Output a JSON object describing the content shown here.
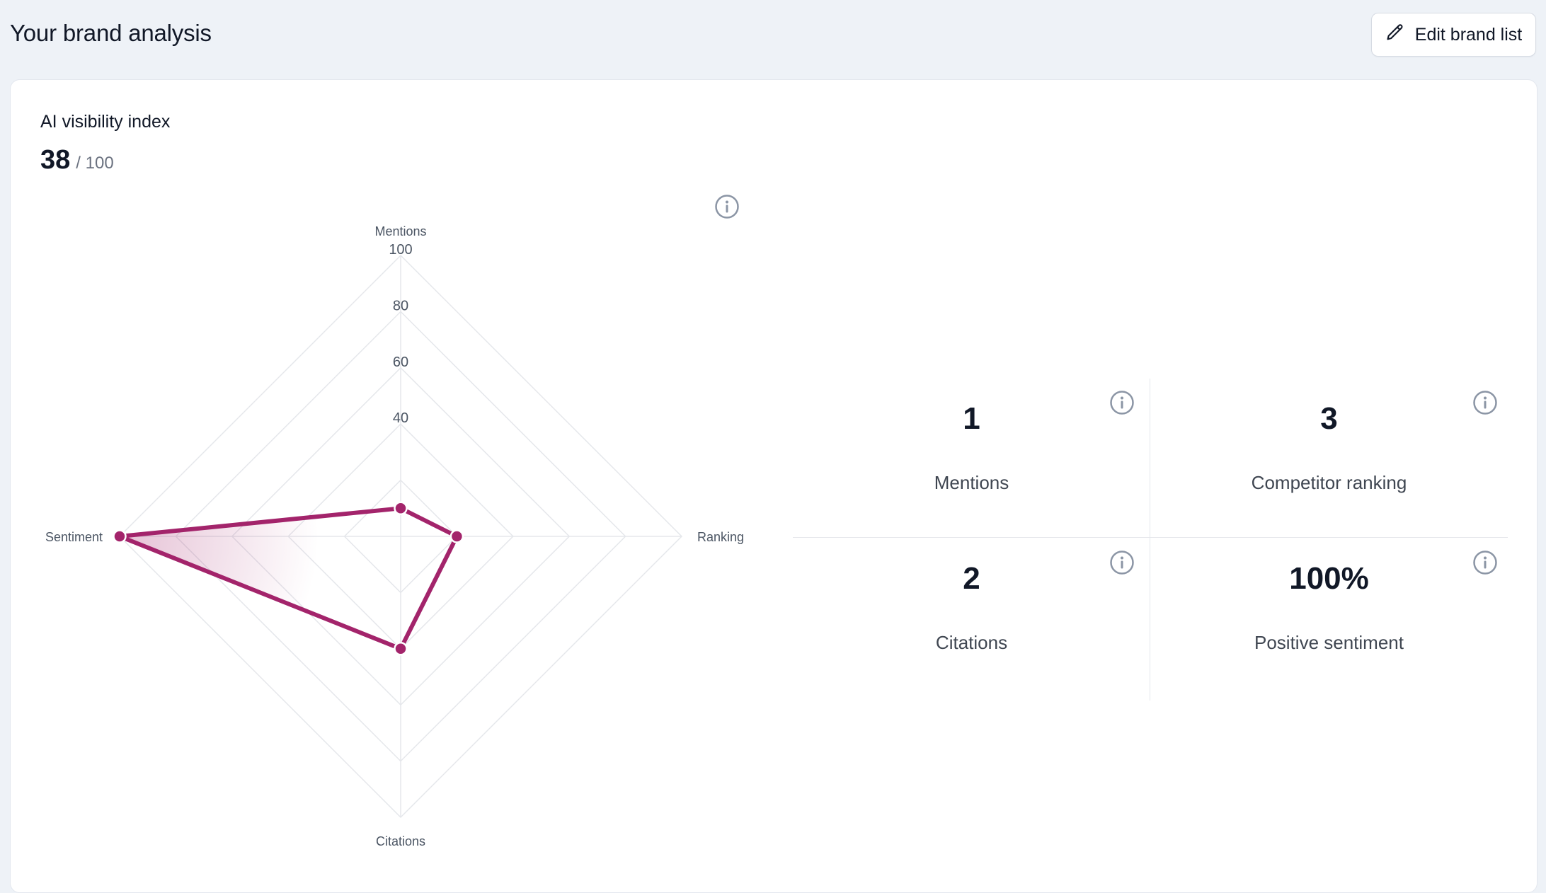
{
  "header": {
    "title": "Your brand analysis",
    "edit_button_label": "Edit brand list"
  },
  "visibility_index": {
    "title": "AI visibility index",
    "score": "38",
    "max": "/ 100"
  },
  "chart_data": {
    "type": "radar",
    "axes": [
      "Mentions",
      "Ranking",
      "Citations",
      "Sentiment"
    ],
    "rings": [
      20,
      40,
      60,
      80,
      100
    ],
    "ring_labels": [
      "40",
      "60",
      "80",
      "100"
    ],
    "range": [
      0,
      100
    ],
    "series": [
      {
        "values": [
          10,
          20,
          40,
          100
        ]
      }
    ],
    "colors": {
      "series": "#a3246b",
      "grid": "#e5e7eb",
      "axis_label": "#4b5563"
    }
  },
  "stats": [
    {
      "value": "1",
      "label": "Mentions"
    },
    {
      "value": "3",
      "label": "Competitor ranking"
    },
    {
      "value": "2",
      "label": "Citations"
    },
    {
      "value": "100%",
      "label": "Positive sentiment"
    }
  ],
  "icons": {
    "edit": "pencil-icon",
    "info": "info-icon"
  }
}
